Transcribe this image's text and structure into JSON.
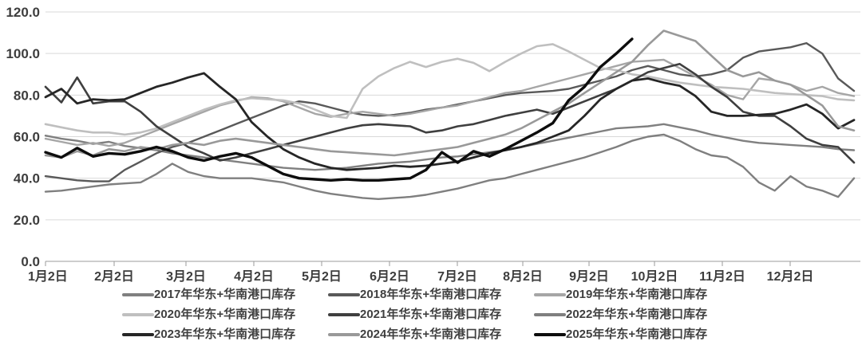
{
  "chart_data": {
    "type": "line",
    "title": "",
    "xlabel": "",
    "ylabel": "",
    "ylim": [
      0,
      120
    ],
    "grid": "horizontal",
    "legend_position": "bottom",
    "y_ticks": [
      "0.0",
      "20.0",
      "40.0",
      "60.0",
      "80.0",
      "100.0",
      "120.0"
    ],
    "x_tick_labels": [
      "1月2日",
      "2月2日",
      "3月2日",
      "4月2日",
      "5月2日",
      "6月2日",
      "7月2日",
      "8月2日",
      "9月2日",
      "10月2日",
      "11月2日",
      "12月2日"
    ],
    "x_unit": "week",
    "series": [
      {
        "name": "2017年华东+华南港口库存",
        "color": "#808080",
        "width": 2.4,
        "values": [
          60.5,
          59,
          58,
          56.5,
          57.5,
          55.5,
          54.5,
          53.5,
          52,
          51,
          50,
          49,
          48,
          47,
          46,
          45,
          44.5,
          44,
          44.5,
          45,
          46,
          47,
          47.5,
          48,
          49,
          50,
          50.5,
          51.5,
          52.5,
          53.5,
          55,
          56.5,
          58,
          59.5,
          61,
          62.5,
          64,
          64.5,
          65,
          66,
          64.5,
          63,
          61,
          59.5,
          58,
          57,
          56.5,
          56,
          55.5,
          55,
          54,
          53.5
        ]
      },
      {
        "name": "2018年华东+华南港口库存",
        "color": "#595959",
        "width": 2.4,
        "values": [
          41,
          40,
          39,
          38.5,
          38.5,
          44,
          48,
          52,
          55,
          57,
          60,
          63,
          66,
          69,
          72,
          75,
          77,
          76,
          74,
          72,
          70.5,
          70,
          70.5,
          71.5,
          73,
          74,
          75.5,
          77,
          78.5,
          80,
          81,
          81.5,
          82,
          83,
          85,
          87,
          89,
          92,
          94,
          92,
          90,
          89,
          90,
          92,
          98,
          101,
          102,
          103,
          105,
          100,
          88,
          82
        ]
      },
      {
        "name": "2019年华东+华南港口库存",
        "color": "#a6a6a6",
        "width": 2.4,
        "values": [
          59,
          57.5,
          56,
          57,
          55.5,
          57,
          60,
          63,
          66,
          69,
          72,
          75,
          77,
          79,
          78.5,
          77,
          74,
          71,
          69.5,
          71,
          72,
          71,
          70,
          71,
          72.5,
          74,
          75,
          77,
          79,
          81,
          82,
          84,
          86,
          88,
          90,
          92,
          94,
          96,
          96.5,
          97,
          93,
          89,
          85,
          80,
          78,
          88,
          87,
          85,
          82,
          84,
          81,
          79.5
        ]
      },
      {
        "name": "2020年华东+华南港口库存",
        "color": "#bfbfbf",
        "width": 2.6,
        "values": [
          66,
          64.5,
          63,
          62,
          62,
          61,
          62,
          64,
          67,
          70,
          73,
          75.5,
          77.5,
          78.5,
          78,
          77.5,
          76,
          73,
          70,
          69,
          83,
          89,
          93,
          96,
          93.5,
          96,
          97.5,
          95.5,
          91.5,
          96,
          100,
          103.5,
          104.5,
          101,
          97,
          93,
          92,
          90,
          89,
          87.5,
          86,
          85,
          84,
          83.5,
          83,
          82,
          81,
          80.5,
          80,
          79.5,
          78,
          77.5
        ]
      },
      {
        "name": "2021年华东+华南港口库存",
        "color": "#3f3f3f",
        "width": 2.6,
        "values": [
          84,
          76.5,
          88.5,
          76,
          77,
          77,
          72,
          65,
          60,
          55,
          52,
          48.5,
          50,
          52,
          54,
          56,
          58,
          60,
          62,
          64,
          65.5,
          66,
          65.5,
          65,
          62,
          63,
          65,
          66,
          68,
          70,
          71.5,
          73,
          71,
          74,
          77,
          80,
          83,
          87,
          91,
          93,
          95,
          90,
          84,
          79,
          72,
          70,
          70,
          65,
          59,
          56,
          55,
          47.5
        ]
      },
      {
        "name": "2022年华东+华南港口库存",
        "color": "#7f7f7f",
        "width": 2.4,
        "values": [
          33.5,
          34,
          35,
          36,
          37,
          37.5,
          38,
          42,
          47,
          43,
          41,
          40,
          40,
          40,
          39,
          38,
          36,
          34,
          32.5,
          31.5,
          30.5,
          30,
          30.5,
          31,
          32,
          33.5,
          35,
          37,
          39,
          40,
          42,
          44,
          46,
          48,
          50,
          52.5,
          55,
          58,
          60,
          61,
          58,
          54,
          51,
          50,
          45.5,
          38,
          34,
          41,
          36,
          34,
          31,
          40
        ]
      },
      {
        "name": "2023年华东+华南港口库存",
        "color": "#262626",
        "width": 2.8,
        "values": [
          79,
          83,
          76,
          78,
          77.5,
          78,
          81,
          84,
          86,
          88.5,
          90.5,
          84,
          78,
          67,
          60,
          54,
          50,
          47,
          45,
          44,
          44.5,
          45,
          46,
          45.5,
          46,
          47,
          48,
          50,
          52,
          53.5,
          55,
          57,
          60,
          63,
          70,
          78,
          83,
          87,
          88,
          86,
          84.5,
          79.5,
          72,
          70,
          70,
          70.5,
          71,
          73,
          75.5,
          71,
          64,
          68
        ]
      },
      {
        "name": "2024年华东+华南港口库存",
        "color": "#999999",
        "width": 2.6,
        "values": [
          51,
          50,
          53,
          51,
          54,
          53,
          55,
          54,
          56,
          57,
          56,
          58,
          59,
          58,
          57,
          56,
          55,
          54,
          53,
          52.5,
          52,
          51.5,
          51,
          52,
          53,
          54,
          55,
          57,
          59,
          61,
          64,
          68,
          72,
          76,
          81,
          86,
          91,
          96,
          104,
          111,
          108.5,
          106,
          99,
          92,
          89,
          91,
          87,
          85,
          80,
          75,
          65,
          63
        ]
      },
      {
        "name": "2025年华东+华南港口库存",
        "color": "#0d0d0d",
        "width": 3.4,
        "values": [
          52.5,
          50,
          54.5,
          50.5,
          52,
          51.5,
          53,
          55,
          53,
          50,
          48.5,
          50.5,
          52,
          50,
          46,
          42,
          40,
          39.5,
          39,
          39.5,
          39,
          39,
          39.5,
          40,
          44,
          52.5,
          47.5,
          53,
          50.5,
          54,
          58,
          62,
          66.5,
          77.5,
          84,
          93.5,
          100,
          107
        ]
      }
    ]
  },
  "legend": {
    "rows": [
      [
        0,
        1,
        2
      ],
      [
        3,
        4,
        5
      ],
      [
        6,
        7,
        8
      ]
    ]
  },
  "style": {
    "gridline_color": "#d9d9d9",
    "axis_color": "#9b9b9b",
    "tick_label_color": "#3d3d3d",
    "background": "#ffffff"
  }
}
